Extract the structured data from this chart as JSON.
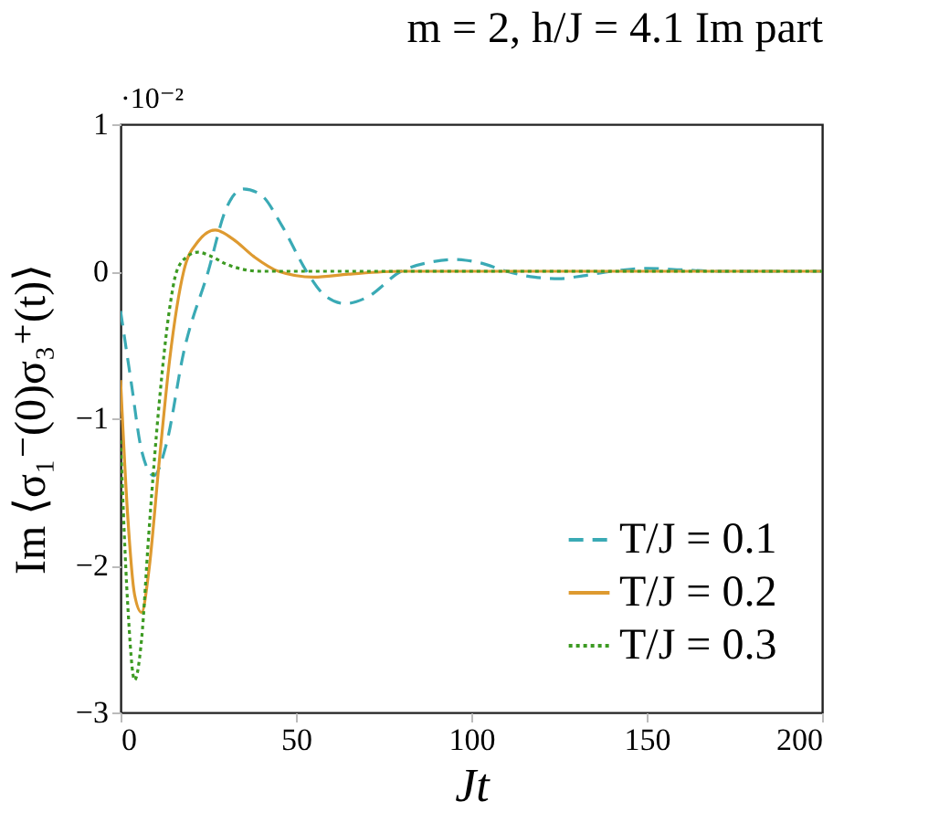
{
  "chart_data": {
    "type": "line",
    "title": "m = 2, h/J = 4.1 Im part",
    "xlabel": "Jt",
    "ylabel": "Im ⟨σ₁⁻(0)σ₃⁺(t)⟩",
    "annotations": [
      "·10⁻²"
    ],
    "xlim": [
      0,
      200
    ],
    "xticks": [
      0,
      50,
      100,
      150,
      200
    ],
    "ylim": [
      -3,
      1
    ],
    "yticks": [
      {
        "value": -3,
        "label": "−3"
      },
      {
        "value": -2,
        "label": "−2"
      },
      {
        "value": -1,
        "label": "−1"
      },
      0,
      1
    ],
    "legend": "bottom right",
    "grid": false,
    "series": [
      {
        "name": "T/J = 0.1",
        "color": "#3aaab5",
        "line_style": "dashed",
        "x": [
          0,
          3,
          6,
          9.5,
          13,
          18,
          25,
          30,
          35,
          40,
          46,
          53,
          58,
          64,
          70,
          80,
          88,
          95,
          102,
          110,
          118,
          125,
          132,
          140,
          150,
          160,
          170,
          185,
          200
        ],
        "values": [
          -0.27,
          -0.75,
          -1.22,
          -1.39,
          -1.18,
          -0.55,
          0.0,
          0.42,
          0.56,
          0.52,
          0.31,
          0.0,
          -0.16,
          -0.22,
          -0.18,
          0.0,
          0.06,
          0.08,
          0.06,
          0.0,
          -0.04,
          -0.05,
          -0.03,
          0.0,
          0.02,
          0.01,
          0.0,
          0.0,
          0.0
        ]
      },
      {
        "name": "T/J = 0.2",
        "color": "#de9a30",
        "line_style": "solid",
        "x": [
          0,
          2,
          4,
          6,
          8,
          11,
          14,
          18,
          22,
          27,
          32,
          38,
          45,
          55,
          65,
          80,
          100,
          150,
          200
        ],
        "values": [
          -0.74,
          -1.65,
          -2.2,
          -2.32,
          -2.05,
          -1.3,
          -0.6,
          0.0,
          0.2,
          0.28,
          0.22,
          0.1,
          0.0,
          -0.04,
          -0.02,
          0.0,
          0.0,
          0.0,
          0.0
        ]
      },
      {
        "name": "T/J = 0.3",
        "color": "#3c9a22",
        "line_style": "dotted",
        "x": [
          0,
          2,
          4,
          6,
          8,
          11,
          14,
          16,
          19,
          22,
          26,
          30,
          40,
          60,
          100,
          150,
          200
        ],
        "values": [
          -1.15,
          -2.25,
          -2.78,
          -2.5,
          -1.8,
          -0.9,
          -0.25,
          0.0,
          0.1,
          0.13,
          0.1,
          0.05,
          0.0,
          0.0,
          0.0,
          0.0,
          0.0
        ]
      }
    ]
  }
}
